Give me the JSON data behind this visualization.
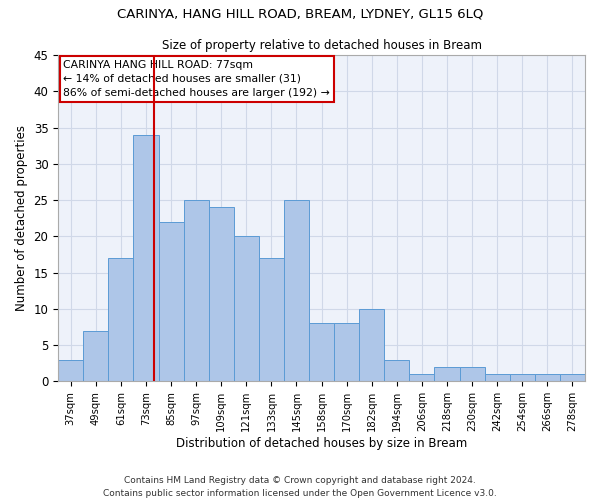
{
  "title": "CARINYA, HANG HILL ROAD, BREAM, LYDNEY, GL15 6LQ",
  "subtitle": "Size of property relative to detached houses in Bream",
  "xlabel": "Distribution of detached houses by size in Bream",
  "ylabel": "Number of detached properties",
  "categories": [
    "37sqm",
    "49sqm",
    "61sqm",
    "73sqm",
    "85sqm",
    "97sqm",
    "109sqm",
    "121sqm",
    "133sqm",
    "145sqm",
    "158sqm",
    "170sqm",
    "182sqm",
    "194sqm",
    "206sqm",
    "218sqm",
    "230sqm",
    "242sqm",
    "254sqm",
    "266sqm",
    "278sqm"
  ],
  "values": [
    3,
    7,
    17,
    34,
    22,
    25,
    24,
    20,
    17,
    25,
    8,
    8,
    10,
    3,
    1,
    2,
    2,
    1,
    1,
    1,
    1
  ],
  "bar_color": "#aec6e8",
  "bar_edge_color": "#5b9bd5",
  "grid_color": "#d0d8e8",
  "bg_color": "#eef2fa",
  "marker_label": "CARINYA HANG HILL ROAD: 77sqm",
  "annotation_line1": "← 14% of detached houses are smaller (31)",
  "annotation_line2": "86% of semi-detached houses are larger (192) →",
  "annotation_box_color": "#ffffff",
  "annotation_box_edge": "#cc0000",
  "marker_line_color": "#cc0000",
  "ylim": [
    0,
    45
  ],
  "yticks": [
    0,
    5,
    10,
    15,
    20,
    25,
    30,
    35,
    40,
    45
  ],
  "footer1": "Contains HM Land Registry data © Crown copyright and database right 2024.",
  "footer2": "Contains public sector information licensed under the Open Government Licence v3.0."
}
